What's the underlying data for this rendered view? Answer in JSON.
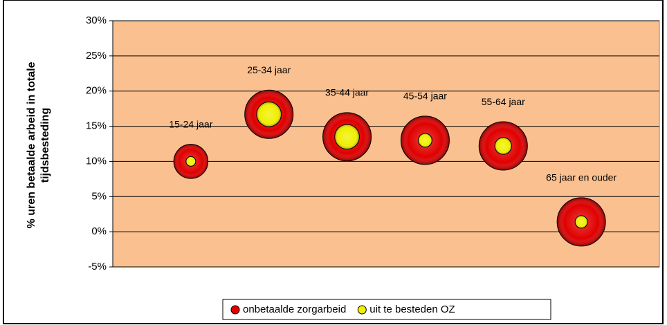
{
  "chart_data": {
    "type": "bubble",
    "ylabel": [
      "% uren betaalde arbeid in totale",
      "tijdsbesteding"
    ],
    "x": [
      1,
      2,
      3,
      4,
      5,
      6
    ],
    "xlim": [
      0,
      7
    ],
    "labels": [
      "15-24 jaar",
      "25-34 jaar",
      "35-44 jaar",
      "45-54 jaar",
      "55-64 jaar",
      "65 jaar en ouder"
    ],
    "ylim": [
      -5,
      30
    ],
    "yticks": [
      {
        "value": -5,
        "label": "-5%"
      },
      {
        "value": 0,
        "label": "0%"
      },
      {
        "value": 5,
        "label": "5%"
      },
      {
        "value": 10,
        "label": "10%"
      },
      {
        "value": 15,
        "label": "15%"
      },
      {
        "value": 20,
        "label": "20%"
      },
      {
        "value": 25,
        "label": "25%"
      },
      {
        "value": 30,
        "label": "30%"
      }
    ],
    "grid": true,
    "plot_background": "#fac090",
    "legend": "bottom",
    "series": [
      {
        "name": "onbetaalde zorgarbeid",
        "color": "#e00000",
        "values": [
          10,
          16.7,
          13.5,
          13,
          12.2,
          1.4
        ],
        "sizes": [
          5,
          10,
          10,
          10,
          10,
          10
        ]
      },
      {
        "name": "uit te besteden OZ",
        "color": "#f0f000",
        "values": [
          10,
          16.7,
          13.5,
          13,
          12.2,
          1.4
        ],
        "sizes": [
          0.4,
          2.6,
          2.6,
          0.8,
          1.2,
          0.66
        ]
      }
    ]
  }
}
